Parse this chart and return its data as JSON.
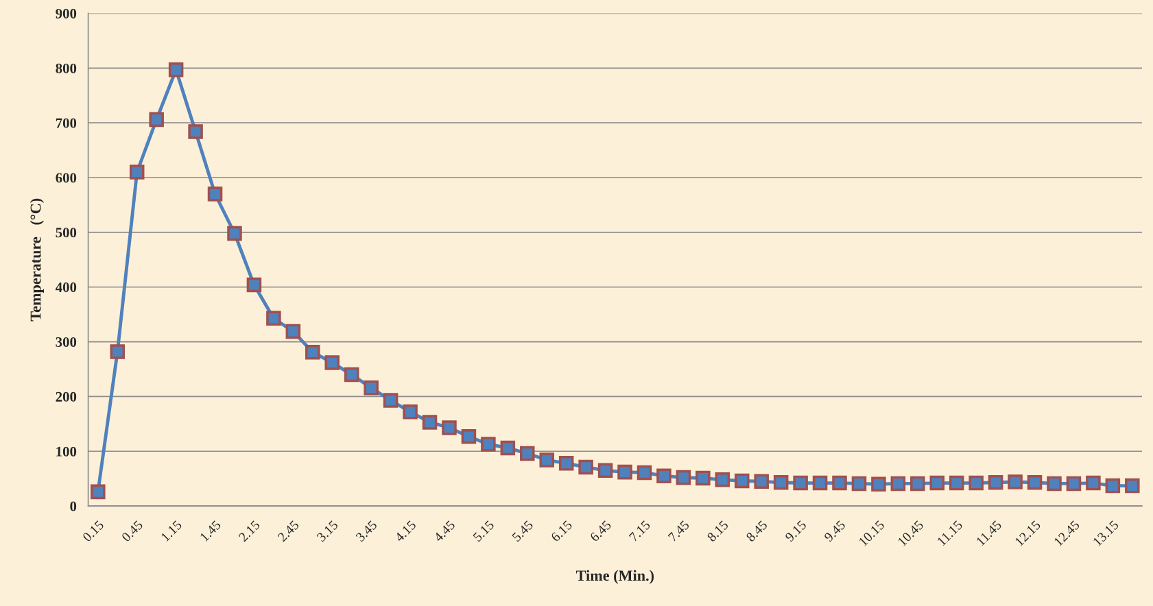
{
  "chart_data": {
    "type": "line",
    "xlabel": "Time (Min.)",
    "ylabel": "Temperature   (°C)",
    "categories": [
      "0.15",
      null,
      "0.45",
      null,
      "1.15",
      null,
      "1.45",
      null,
      "2.15",
      null,
      "2.45",
      null,
      "3.15",
      null,
      "3.45",
      null,
      "4.15",
      null,
      "4.45",
      null,
      "5.15",
      null,
      "5.45",
      null,
      "6.15",
      null,
      "6.45",
      null,
      "7.15",
      null,
      "7.45",
      null,
      "8.15",
      null,
      "8.45",
      null,
      "9.15",
      null,
      "9.45",
      null,
      "10.15",
      null,
      "10.45",
      null,
      "11.15",
      null,
      "11.45",
      null,
      "12.15",
      null,
      "12.45",
      null,
      "13.15",
      null
    ],
    "series": [
      {
        "color": "#4f81bd",
        "values": [
          26,
          282,
          610,
          706,
          797,
          684,
          570,
          498,
          404,
          343,
          319,
          281,
          262,
          240,
          216,
          193,
          172,
          153,
          143,
          127,
          113,
          106,
          96,
          84,
          78,
          71,
          65,
          62,
          61,
          55,
          52,
          51,
          48,
          46,
          45,
          43,
          42,
          42,
          42,
          41,
          40,
          41,
          41,
          42,
          42,
          42,
          43,
          44,
          43,
          41,
          41,
          42,
          37,
          37
        ]
      }
    ],
    "ylim": [
      0,
      900
    ],
    "yticks": [
      0,
      100,
      200,
      300,
      400,
      500,
      600,
      700,
      800,
      900
    ],
    "grid": "y",
    "marker": "square",
    "line_style": "solid",
    "legend": false
  }
}
